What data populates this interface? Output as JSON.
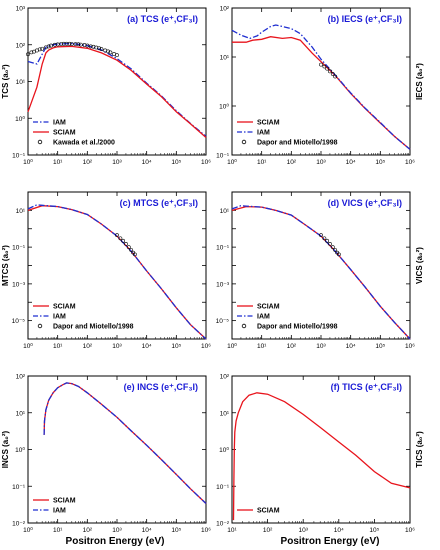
{
  "colors": {
    "sciam": "#e8141c",
    "iam": "#1f2ed0",
    "exp": "#000000",
    "title": "#1a1ad6",
    "axis": "#000000"
  },
  "shared_xlabel": "Positron Energy (eV)",
  "chart_data": [
    {
      "id": "a",
      "type": "line",
      "title": "(a) TCS  (e⁺,CF₃I)",
      "ylabel": "TCS (a₀²)",
      "ylabel_side": "left",
      "xscale": "log",
      "yscale": "log",
      "xlim": [
        1,
        1000000
      ],
      "ylim": [
        0.1,
        1000
      ],
      "xticks": [
        "10⁰",
        "10¹",
        "10²",
        "10³",
        "10⁴",
        "10⁵",
        "10⁶"
      ],
      "yticks": [
        "10⁻¹",
        "10⁰",
        "10¹",
        "10²",
        "10³"
      ],
      "legend_position": "bottom-left",
      "series": [
        {
          "name": "IAM",
          "style": "dashdot",
          "x": [
            1,
            2,
            4,
            7,
            10,
            30,
            100,
            300,
            1000,
            3000,
            10000,
            30000,
            100000,
            300000,
            1000000
          ],
          "y": [
            35,
            30,
            85,
            100,
            105,
            108,
            95,
            72,
            42,
            22,
            9,
            4.2,
            1.6,
            0.72,
            0.32
          ]
        },
        {
          "name": "SCIAM",
          "style": "solid",
          "x": [
            1,
            2,
            3,
            4,
            5,
            7,
            10,
            30,
            100,
            300,
            1000,
            3000,
            10000,
            30000,
            100000,
            300000,
            1000000
          ],
          "y": [
            1.5,
            7,
            30,
            60,
            72,
            82,
            88,
            90,
            80,
            60,
            38,
            20,
            8.5,
            4,
            1.5,
            0.7,
            0.3
          ]
        },
        {
          "name": "Kawada et al./2000",
          "style": "markers",
          "marker": "open-circle",
          "x": [
            1,
            1.3,
            1.6,
            2,
            2.5,
            3,
            4,
            5,
            6,
            8,
            10,
            13,
            16,
            20,
            25,
            30,
            40,
            50,
            60,
            80,
            100,
            130,
            160,
            200,
            250,
            300,
            400,
            500,
            600,
            800,
            1000
          ],
          "y": [
            55,
            62,
            65,
            70,
            75,
            78,
            85,
            90,
            95,
            100,
            102,
            105,
            106,
            106,
            106,
            105,
            104,
            103,
            101,
            98,
            95,
            90,
            88,
            84,
            80,
            76,
            70,
            66,
            62,
            56,
            52
          ]
        }
      ]
    },
    {
      "id": "b",
      "type": "line",
      "title": "(b) IECS  (e⁺,CF₃I)",
      "ylabel": "IECS (a₀²)",
      "ylabel_side": "right",
      "xscale": "log",
      "yscale": "log",
      "xlim": [
        1,
        1000000
      ],
      "ylim": [
        0.1,
        100
      ],
      "xticks": [
        "10⁰",
        "10¹",
        "10²",
        "10³",
        "10⁴",
        "10⁵",
        "10⁶"
      ],
      "yticks": [
        "10⁻¹",
        "10⁰",
        "10¹",
        "10²"
      ],
      "legend_position": "bottom-left",
      "series": [
        {
          "name": "SCIAM",
          "style": "solid",
          "x": [
            1,
            3,
            5,
            10,
            20,
            50,
            100,
            200,
            500,
            1000,
            3000,
            10000,
            30000,
            100000,
            300000,
            1000000
          ],
          "y": [
            20,
            20,
            22,
            23,
            26,
            24,
            25,
            22,
            12,
            8,
            4.2,
            1.8,
            0.9,
            0.45,
            0.24,
            0.13
          ]
        },
        {
          "name": "IAM",
          "style": "dashdot",
          "x": [
            1,
            2,
            4,
            7,
            10,
            20,
            30,
            50,
            100,
            200,
            500,
            1000,
            3000,
            10000,
            30000,
            100000,
            300000,
            1000000
          ],
          "y": [
            35,
            28,
            24,
            27,
            32,
            42,
            45,
            42,
            38,
            30,
            16,
            9,
            4.3,
            1.85,
            0.92,
            0.46,
            0.24,
            0.13
          ]
        },
        {
          "name": "Dapor and Miotello/1998",
          "style": "markers",
          "marker": "open-circle",
          "x": [
            1000,
            1300,
            1600,
            2000,
            2500,
            3000
          ],
          "y": [
            7,
            6.4,
            5.8,
            5.1,
            4.5,
            4
          ]
        }
      ]
    },
    {
      "id": "c",
      "type": "line",
      "title": "(c) MTCS  (e⁺,CF₃I)",
      "ylabel": "MTCS (a₀²)",
      "ylabel_side": "left",
      "xscale": "log",
      "yscale": "log",
      "xlim": [
        1,
        1000000
      ],
      "ylim": [
        1e-06,
        100
      ],
      "xticks": [
        "10⁰",
        "10¹",
        "10²",
        "10³",
        "10⁴",
        "10⁵",
        "10⁶"
      ],
      "yticks": [
        "10⁻⁵",
        "10⁻³",
        "10⁻¹",
        "10¹"
      ],
      "legend_position": "bottom-left",
      "series": [
        {
          "name": "SCIAM",
          "style": "solid",
          "x": [
            1,
            3,
            10,
            30,
            100,
            300,
            1000,
            3000,
            10000,
            30000,
            100000,
            300000,
            1000000
          ],
          "y": [
            10,
            18,
            16,
            11,
            6,
            1.8,
            0.4,
            0.06,
            0.005,
            0.0006,
            5e-05,
            6e-06,
            5e-07
          ]
        },
        {
          "name": "IAM",
          "style": "dashdot",
          "x": [
            1,
            2,
            3,
            10,
            30,
            100,
            300,
            1000,
            3000,
            10000,
            30000,
            100000,
            300000,
            1000000
          ],
          "y": [
            12,
            20,
            19,
            16,
            11,
            6,
            1.8,
            0.4,
            0.06,
            0.005,
            0.0006,
            5e-05,
            6e-06,
            5e-07
          ]
        },
        {
          "name": "Dapor and Miotello/1998",
          "style": "markers",
          "marker": "open-circle",
          "x": [
            1000,
            1300,
            1600,
            2000,
            2500,
            3000,
            3500,
            4000
          ],
          "y": [
            0.45,
            0.3,
            0.22,
            0.15,
            0.1,
            0.07,
            0.05,
            0.04
          ]
        }
      ]
    },
    {
      "id": "d",
      "type": "line",
      "title": "(d) VICS  (e⁺,CF₃I)",
      "ylabel": "VICS (a₀²)",
      "ylabel_side": "right",
      "xscale": "log",
      "yscale": "log",
      "xlim": [
        1,
        1000000
      ],
      "ylim": [
        1e-06,
        100
      ],
      "xticks": [
        "10⁰",
        "10¹",
        "10²",
        "10³",
        "10⁴",
        "10⁵",
        "10⁶"
      ],
      "yticks": [
        "10⁻⁵",
        "10⁻³",
        "10⁻¹",
        "10¹"
      ],
      "legend_position": "bottom-left",
      "series": [
        {
          "name": "SCIAM",
          "style": "solid",
          "x": [
            1,
            3,
            10,
            30,
            100,
            300,
            1000,
            3000,
            10000,
            30000,
            100000,
            300000,
            1000000
          ],
          "y": [
            10,
            16,
            15,
            10,
            5.5,
            1.6,
            0.4,
            0.06,
            0.006,
            0.0007,
            6e-05,
            8e-06,
            8e-07
          ]
        },
        {
          "name": "IAM",
          "style": "dashdot",
          "x": [
            1,
            2,
            3,
            10,
            30,
            100,
            300,
            1000,
            3000,
            10000,
            30000,
            100000,
            300000,
            1000000
          ],
          "y": [
            12,
            18,
            17,
            15,
            10,
            5.5,
            1.6,
            0.4,
            0.06,
            0.006,
            0.0007,
            6e-05,
            8e-06,
            8e-07
          ]
        },
        {
          "name": "Dapor and Miotello/1998",
          "style": "markers",
          "marker": "open-circle",
          "x": [
            1000,
            1300,
            1600,
            2000,
            2500,
            3000,
            3500,
            4000
          ],
          "y": [
            0.45,
            0.3,
            0.22,
            0.15,
            0.1,
            0.07,
            0.05,
            0.04
          ]
        }
      ]
    },
    {
      "id": "e",
      "type": "line",
      "title": "(e) INCS  (e⁺,CF₃I)",
      "ylabel": "INCS (a₀²)",
      "ylabel_side": "left",
      "xscale": "log",
      "yscale": "log",
      "xlim": [
        1,
        1000000
      ],
      "ylim": [
        0.01,
        100
      ],
      "xticks": [
        "10⁰",
        "10¹",
        "10²",
        "10³",
        "10⁴",
        "10⁵",
        "10⁶"
      ],
      "yticks": [
        "10⁻²",
        "10⁻¹",
        "10⁰",
        "10¹",
        "10²"
      ],
      "legend_position": "bottom-left",
      "series": [
        {
          "name": "SCIAM",
          "style": "solid",
          "x": [
            3.5,
            3.6,
            4,
            5,
            7,
            10,
            15,
            20,
            30,
            50,
            100,
            300,
            1000,
            3000,
            10000,
            30000,
            100000,
            300000,
            1000000
          ],
          "y": [
            2.5,
            6,
            12,
            22,
            35,
            48,
            58,
            65,
            62,
            52,
            35,
            17,
            7.5,
            3.2,
            1.3,
            0.55,
            0.21,
            0.085,
            0.034
          ]
        },
        {
          "name": "IAM",
          "style": "dashdot",
          "x": [
            3.5,
            3.6,
            4,
            5,
            7,
            10,
            15,
            20,
            30,
            50,
            100,
            300,
            1000,
            3000,
            10000,
            30000,
            100000,
            300000,
            1000000
          ],
          "y": [
            2.5,
            6,
            12,
            22,
            35,
            48,
            58,
            65,
            62,
            52,
            35,
            17,
            7.5,
            3.2,
            1.3,
            0.55,
            0.21,
            0.085,
            0.034
          ]
        }
      ]
    },
    {
      "id": "f",
      "type": "line",
      "title": "(f) TICS  (e⁺,CF₃I)",
      "ylabel": "TICS (a₀²)",
      "ylabel_side": "right",
      "xscale": "log",
      "yscale": "log",
      "xlim": [
        10,
        1000000
      ],
      "ylim": [
        0.01,
        100
      ],
      "xticks": [
        "10¹",
        "10²",
        "10³",
        "10⁴",
        "10⁵",
        "10⁶"
      ],
      "yticks": [
        "10⁻²",
        "10⁻¹",
        "10⁰",
        "10¹",
        "10²"
      ],
      "legend_position": "bottom-left",
      "series": [
        {
          "name": "SCIAM",
          "style": "solid",
          "x": [
            11,
            11.3,
            11.6,
            12,
            13,
            15,
            20,
            30,
            50,
            100,
            300,
            1000,
            3000,
            10000,
            30000,
            100000,
            300000,
            1000000
          ],
          "y": [
            0.012,
            0.15,
            1,
            3,
            6,
            10,
            20,
            30,
            35,
            32,
            20,
            9,
            4,
            1.6,
            0.7,
            0.25,
            0.12,
            0.09
          ]
        }
      ]
    }
  ]
}
